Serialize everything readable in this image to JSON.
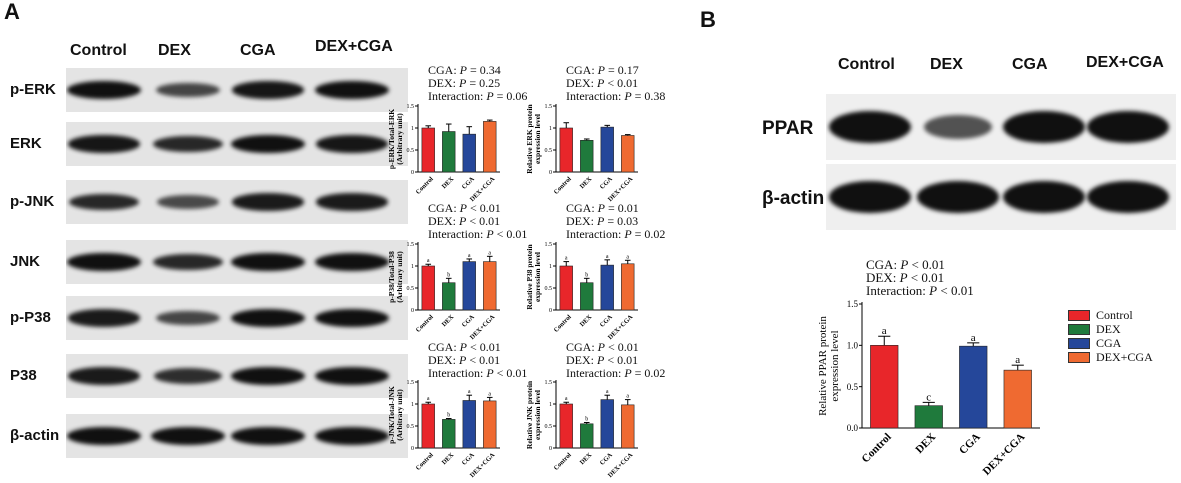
{
  "panel_labels": {
    "a": "A",
    "b": "B"
  },
  "groups": [
    "Control",
    "DEX",
    "CGA",
    "DEX+CGA"
  ],
  "panel_a": {
    "blot_rows": [
      "p-ERK",
      "ERK",
      "p-JNK",
      "JNK",
      "p-P38",
      "P38",
      "β-actin"
    ],
    "band_intensity": {
      "p-ERK": [
        1.0,
        0.55,
        0.95,
        1.0
      ],
      "ERK": [
        0.95,
        0.8,
        1.0,
        0.95
      ],
      "p-JNK": [
        0.8,
        0.5,
        0.9,
        0.9
      ],
      "JNK": [
        1.0,
        0.8,
        1.0,
        1.0
      ],
      "p-P38": [
        0.9,
        0.55,
        1.0,
        1.0
      ],
      "P38": [
        0.9,
        0.75,
        1.0,
        1.0
      ],
      "β-actin": [
        1.0,
        1.0,
        1.0,
        1.0
      ]
    }
  },
  "stats": {
    "p_erk": [
      "CGA: P = 0.34",
      "DEX: P = 0.25",
      "Interaction: P = 0.06"
    ],
    "erk": [
      "CGA: P = 0.17",
      "DEX: P < 0.01",
      "Interaction: P = 0.38"
    ],
    "p_p38": [
      "CGA: P < 0.01",
      "DEX: P < 0.01",
      "Interaction: P < 0.01"
    ],
    "p38": [
      "CGA: P = 0.01",
      "DEX: P = 0.03",
      "Interaction: P = 0.02"
    ],
    "p_jnk": [
      "CGA: P < 0.01",
      "DEX: P < 0.01",
      "Interaction: P < 0.01"
    ],
    "jnk": [
      "CGA: P < 0.01",
      "DEX: P < 0.01",
      "Interaction: P = 0.02"
    ],
    "ppar": [
      "CGA: P < 0.01",
      "DEX: P < 0.01",
      "Interaction: P < 0.01"
    ]
  },
  "panel_b": {
    "blot_rows": [
      "PPAR",
      "β-actin"
    ],
    "band_intensity": {
      "PPAR": [
        1.0,
        0.45,
        1.0,
        1.0
      ],
      "β-actin": [
        1.0,
        1.0,
        1.0,
        1.0
      ]
    }
  },
  "colors": {
    "Control": "#e8262a",
    "DEX": "#1f7a3c",
    "CGA": "#25479a",
    "DEX+CGA": "#ef6a31"
  },
  "chart_data": [
    {
      "id": "p_erk",
      "type": "bar",
      "categories": [
        "Control",
        "DEX",
        "CGA",
        "DEX+CGA"
      ],
      "values": [
        1.0,
        0.92,
        0.86,
        1.15
      ],
      "errors": [
        0.05,
        0.17,
        0.17,
        0.03
      ],
      "sig_letters": [],
      "ylabel": "p-ERK/Total-ERK\n(Arbitrary unit)",
      "ylim": [
        0,
        1.5
      ],
      "yticks": [
        0,
        0.5,
        1.0,
        1.5
      ]
    },
    {
      "id": "erk",
      "type": "bar",
      "categories": [
        "Control",
        "DEX",
        "CGA",
        "DEX+CGA"
      ],
      "values": [
        1.0,
        0.72,
        1.02,
        0.83
      ],
      "errors": [
        0.12,
        0.03,
        0.04,
        0.02
      ],
      "sig_letters": [],
      "ylabel": "Relative ERK protein\nexpression level",
      "ylim": [
        0,
        1.5
      ],
      "yticks": [
        0,
        0.5,
        1.0,
        1.5
      ]
    },
    {
      "id": "p_p38",
      "type": "bar",
      "categories": [
        "Control",
        "DEX",
        "CGA",
        "DEX+CGA"
      ],
      "values": [
        1.0,
        0.62,
        1.1,
        1.1
      ],
      "errors": [
        0.04,
        0.1,
        0.06,
        0.12
      ],
      "sig_letters": [
        "a",
        "b",
        "a",
        "a"
      ],
      "ylabel": "p-P38/Total-P38\n(Arbitrary unit)",
      "ylim": [
        0,
        1.5
      ],
      "yticks": [
        0,
        0.5,
        1.0,
        1.5
      ]
    },
    {
      "id": "p38",
      "type": "bar",
      "categories": [
        "Control",
        "DEX",
        "CGA",
        "DEX+CGA"
      ],
      "values": [
        1.0,
        0.62,
        1.02,
        1.05
      ],
      "errors": [
        0.1,
        0.1,
        0.12,
        0.08
      ],
      "sig_letters": [
        "a",
        "b",
        "a",
        "a"
      ],
      "ylabel": "Relative P38 protein\nexpression level",
      "ylim": [
        0,
        1.5
      ],
      "yticks": [
        0,
        0.5,
        1.0,
        1.5
      ]
    },
    {
      "id": "p_jnk",
      "type": "bar",
      "categories": [
        "Control",
        "DEX",
        "CGA",
        "DEX+CGA"
      ],
      "values": [
        1.0,
        0.65,
        1.08,
        1.07
      ],
      "errors": [
        0.04,
        0.02,
        0.12,
        0.08
      ],
      "sig_letters": [
        "a",
        "b",
        "a",
        "a"
      ],
      "ylabel": "p-JNK/Total-JNK\n(Arbitrary unit)",
      "ylim": [
        0,
        1.5
      ],
      "yticks": [
        0,
        0.5,
        1.0,
        1.5
      ]
    },
    {
      "id": "jnk",
      "type": "bar",
      "categories": [
        "Control",
        "DEX",
        "CGA",
        "DEX+CGA"
      ],
      "values": [
        1.0,
        0.55,
        1.1,
        0.98
      ],
      "errors": [
        0.04,
        0.03,
        0.1,
        0.12
      ],
      "sig_letters": [
        "a",
        "b",
        "a",
        "a"
      ],
      "ylabel": "Relative JNK protein\nexpression level",
      "ylim": [
        0,
        1.5
      ],
      "yticks": [
        0,
        0.5,
        1.0,
        1.5
      ]
    },
    {
      "id": "ppar",
      "type": "bar",
      "categories": [
        "Control",
        "DEX",
        "CGA",
        "DEX+CGA"
      ],
      "values": [
        1.0,
        0.27,
        0.99,
        0.7
      ],
      "errors": [
        0.11,
        0.04,
        0.04,
        0.06
      ],
      "sig_letters": [
        "a",
        "c",
        "a",
        "a"
      ],
      "ylabel": "Relative PPAR protein\nexpression level",
      "ylim": [
        0,
        1.5
      ],
      "yticks": [
        "0.0",
        "0.5",
        "1.0",
        "1.5"
      ],
      "legend": [
        "Control",
        "DEX",
        "CGA",
        "DEX+CGA"
      ],
      "legend_position": "right"
    }
  ]
}
